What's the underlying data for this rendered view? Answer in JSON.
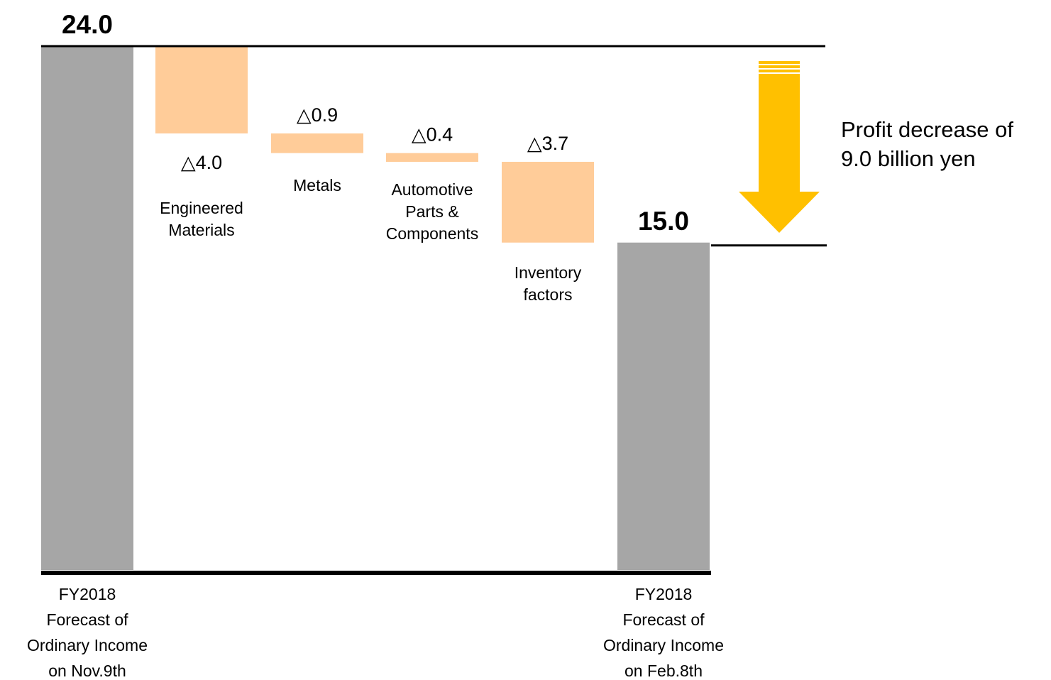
{
  "chart_data": {
    "type": "bar",
    "subtype": "waterfall",
    "categories": [
      [
        "FY2018",
        "Forecast of",
        "Ordinary Income",
        "on Nov.9th"
      ],
      [
        "Engineered",
        "Materials"
      ],
      [
        "Metals"
      ],
      [
        "Automotive",
        "Parts &",
        "Components"
      ],
      [
        "Inventory",
        "factors"
      ],
      [
        "FY2018",
        "Forecast of",
        "Ordinary Income",
        "on Feb.8th"
      ]
    ],
    "values": [
      24.0,
      -4.0,
      -0.9,
      -0.4,
      -3.7,
      15.0
    ],
    "kinds": [
      "total",
      "delta",
      "delta",
      "delta",
      "delta",
      "total"
    ],
    "value_labels": [
      "24.0",
      "△4.0",
      "△0.9",
      "△0.4",
      "△3.7",
      "15.0"
    ],
    "ylim": [
      0,
      24.0
    ],
    "colors": {
      "total": "#a6a6a6",
      "delta": "#ffcc99",
      "arrow": "#ffc000",
      "line": "#000000"
    },
    "annotation": {
      "lines": [
        "Profit decrease of",
        "9.0  billion yen"
      ],
      "arrow_icon": "down-arrow-icon"
    },
    "grid": false,
    "legend": "none"
  }
}
